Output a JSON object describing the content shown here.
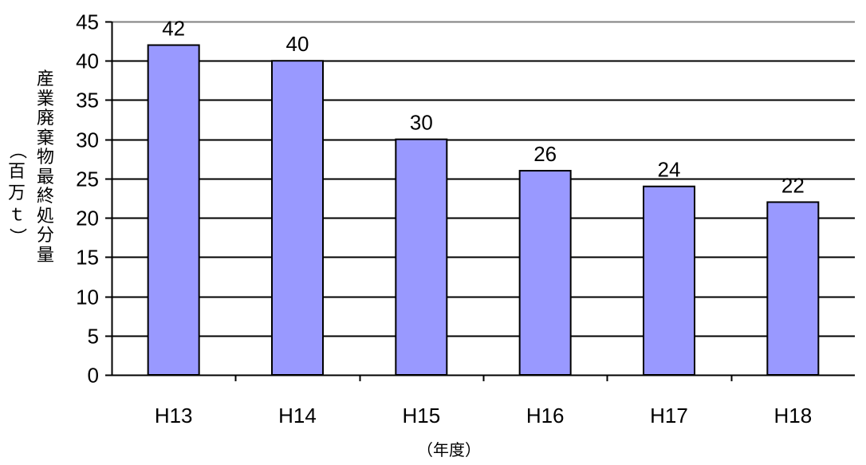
{
  "chart_data": {
    "type": "bar",
    "categories": [
      "H13",
      "H14",
      "H15",
      "H16",
      "H17",
      "H18"
    ],
    "values": [
      42,
      40,
      30,
      26,
      24,
      22
    ],
    "data_labels": [
      "42",
      "40",
      "30",
      "26",
      "24",
      "22"
    ],
    "title": "",
    "xlabel": "（年度）",
    "ylabel": "産業廃棄物最終処分量",
    "yunit": {
      "open": "（",
      "text": "百万ｔ",
      "close": "）"
    },
    "ylim": [
      0,
      45
    ],
    "yticks": [
      0,
      5,
      10,
      15,
      20,
      25,
      30,
      35,
      40,
      45
    ],
    "grid": true,
    "legend": "none",
    "colors": {
      "bar": "#9999ff",
      "bar_border": "#000000",
      "grid": "#000000",
      "top_border": "#808080"
    }
  }
}
